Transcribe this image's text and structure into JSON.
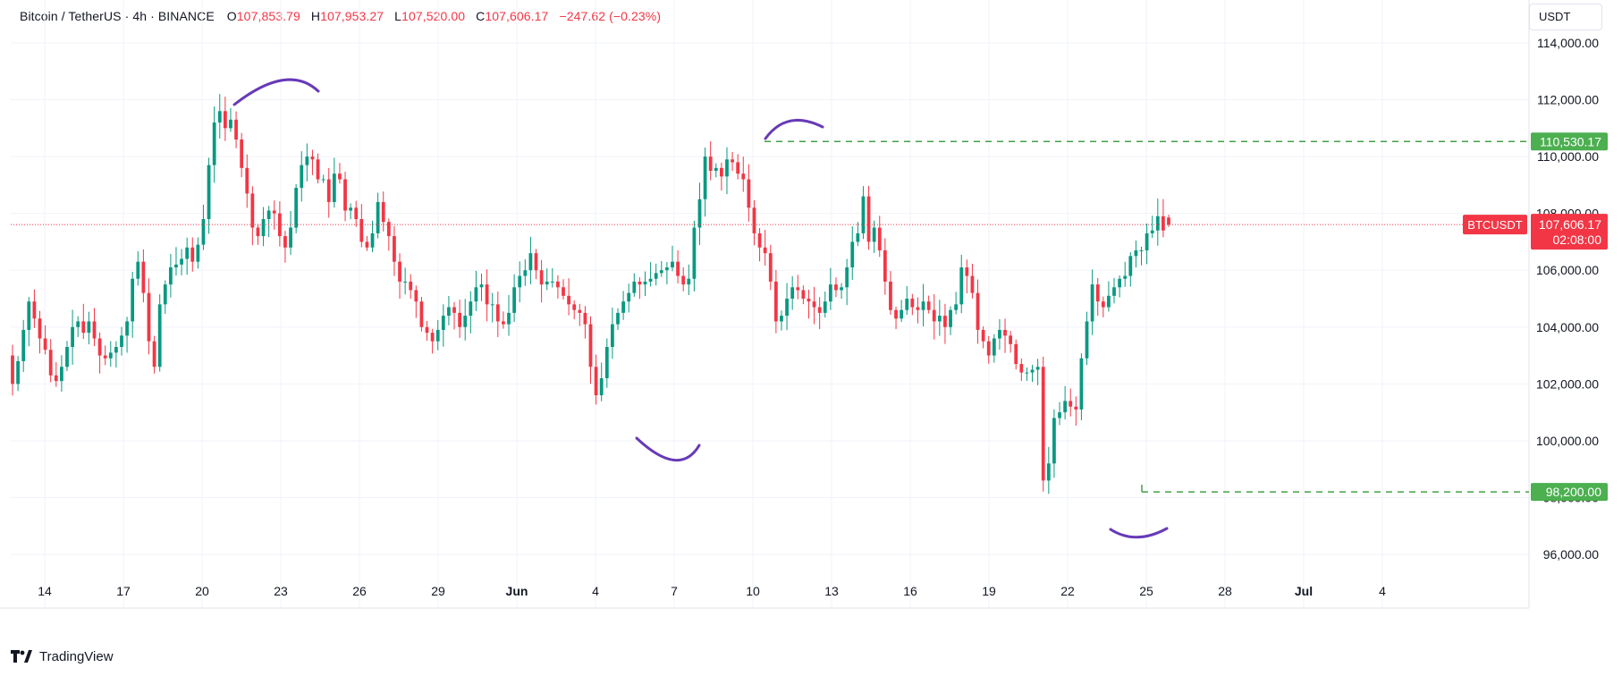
{
  "header": {
    "symbol": "Bitcoin / TetherUS · 4h · BINANCE",
    "o_label": "O",
    "o_value": "107,853.79",
    "h_label": "H",
    "h_value": "107,953.27",
    "l_label": "L",
    "l_value": "107,520.00",
    "c_label": "C",
    "c_value": "107,606.17",
    "change": "−247.62 (−0.23%)"
  },
  "currency_button": "USDT",
  "brand": "TradingView",
  "price_axis": {
    "ticks": [
      "114,000.00",
      "112,000.00",
      "110,000.00",
      "108,000.00",
      "106,000.00",
      "104,000.00",
      "102,000.00",
      "100,000.00",
      "98,000.00",
      "96,000.00"
    ],
    "tick_values": [
      114000,
      112000,
      110000,
      108000,
      106000,
      104000,
      102000,
      100000,
      98000,
      96000
    ]
  },
  "labels": {
    "resistance": "110,530.17",
    "support": "98,200.00",
    "symbol_tag": "BTCUSDT",
    "last_price": "107,606.17",
    "countdown": "02:08:00"
  },
  "colors": {
    "up": "#089981",
    "down": "#f23645",
    "level_line": "#43a047",
    "annotation": "#673ab7",
    "last_price_line": "#f23645",
    "grid": "#f0f3fa"
  },
  "chart_data": {
    "type": "candlestick",
    "title": "Bitcoin / TetherUS · 4h · BINANCE",
    "timeframe": "4h",
    "ylim": [
      95000,
      115000
    ],
    "grid": true,
    "x_ticks": [
      "14",
      "17",
      "20",
      "23",
      "26",
      "29",
      "Jun",
      "4",
      "7",
      "10",
      "13",
      "16",
      "19",
      "22",
      "25",
      "28",
      "Jul",
      "4"
    ],
    "ohlc_last": {
      "open": 107853.79,
      "high": 107953.27,
      "low": 107520.0,
      "close": 107606.17,
      "change": -247.62,
      "change_pct": -0.23
    },
    "horizontal_levels": [
      {
        "price": 110530.17,
        "style": "dashed",
        "color": "#43a047"
      },
      {
        "price": 98200.0,
        "style": "dashed",
        "color": "#43a047"
      }
    ],
    "last_price": 107606.17,
    "closes": [
      102000,
      102800,
      103900,
      104900,
      104300,
      103600,
      103200,
      102300,
      102100,
      102600,
      103300,
      104000,
      104200,
      103800,
      104200,
      103600,
      103000,
      102900,
      103100,
      103300,
      103700,
      104200,
      105700,
      106300,
      105200,
      103500,
      102600,
      104800,
      105500,
      106100,
      106200,
      106400,
      106800,
      106300,
      106900,
      107800,
      109700,
      111200,
      111600,
      111000,
      111300,
      110600,
      109600,
      108700,
      107500,
      107200,
      107800,
      108100,
      108000,
      107200,
      106800,
      107500,
      108900,
      109700,
      110000,
      109900,
      109200,
      109200,
      108400,
      109400,
      109200,
      108100,
      108200,
      107800,
      107000,
      106800,
      107300,
      108400,
      107700,
      107200,
      106300,
      105600,
      105600,
      105300,
      104900,
      104000,
      103800,
      103500,
      103900,
      104400,
      104700,
      104500,
      104000,
      104400,
      104900,
      105400,
      105500,
      104800,
      104800,
      104200,
      104100,
      104500,
      105400,
      105800,
      106000,
      106600,
      106000,
      105500,
      105600,
      105600,
      105400,
      105100,
      104800,
      104600,
      104500,
      104100,
      102600,
      101600,
      102200,
      103300,
      104100,
      104500,
      104900,
      105200,
      105600,
      105500,
      105600,
      105700,
      105900,
      106000,
      106100,
      106300,
      105800,
      105500,
      105700,
      107500,
      108500,
      110000,
      109500,
      109600,
      109300,
      109900,
      109800,
      109400,
      109200,
      108200,
      107300,
      106800,
      106600,
      105600,
      104200,
      104400,
      105000,
      105400,
      105300,
      105000,
      104900,
      104700,
      104500,
      104900,
      105500,
      105300,
      105400,
      106100,
      107000,
      107300,
      108600,
      107000,
      107500,
      106700,
      105600,
      104600,
      104300,
      104600,
      105000,
      104700,
      104600,
      104900,
      104600,
      104200,
      104400,
      104000,
      104600,
      104800,
      106100,
      105800,
      105200,
      103900,
      103500,
      103000,
      103600,
      103900,
      103700,
      103400,
      102700,
      102400,
      102400,
      102500,
      102600,
      98600,
      99200,
      100800,
      101000,
      101400,
      101200,
      101100,
      102900,
      104200,
      105500,
      104900,
      104700,
      105100,
      105400,
      105700,
      105800,
      106500,
      106700,
      106700,
      107300,
      107400,
      107900,
      107400,
      107600
    ]
  },
  "annotations": [
    "arc-top-may-22",
    "arc-bottom-jun-5",
    "arc-top-jun-10",
    "arc-bottom-jun-22"
  ]
}
